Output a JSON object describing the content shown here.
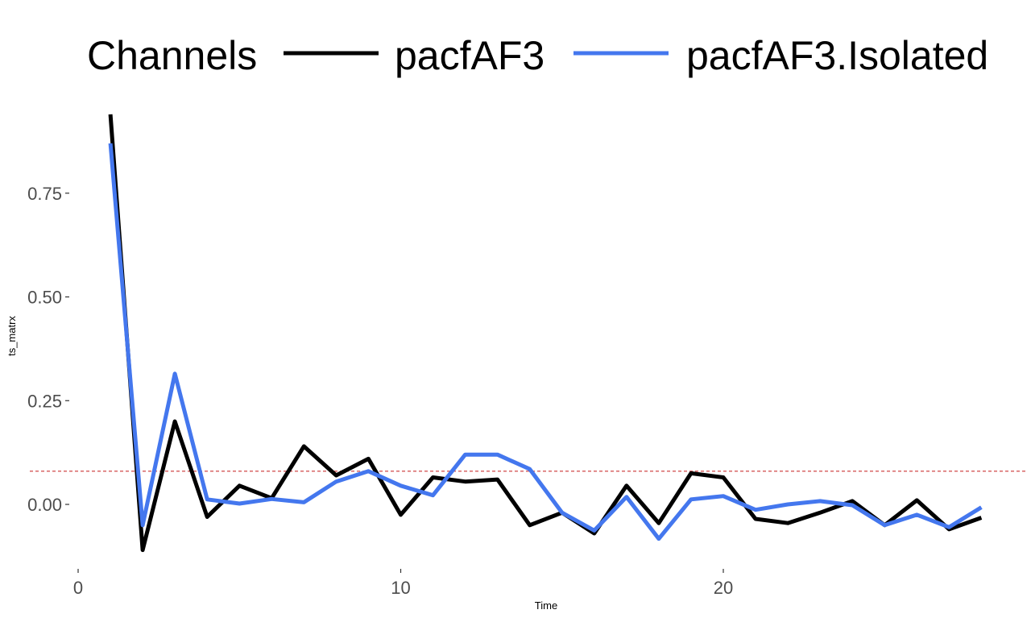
{
  "chart_data": {
    "type": "line",
    "title": "",
    "xlabel": "Time",
    "ylabel": "ts_matrx",
    "xlim": [
      0,
      28
    ],
    "ylim": [
      -0.11,
      0.94
    ],
    "x_ticks": [
      0,
      10,
      20
    ],
    "x_tick_labels": [
      "0",
      "10",
      "20"
    ],
    "y_ticks": [
      0.0,
      0.25,
      0.5,
      0.75
    ],
    "y_tick_labels": [
      "0.00",
      "0.25",
      "0.50",
      "0.75"
    ],
    "grid": false,
    "legend": {
      "title": "Channels",
      "position": "top"
    },
    "x": [
      1,
      2,
      3,
      4,
      5,
      6,
      7,
      8,
      9,
      10,
      11,
      12,
      13,
      14,
      15,
      16,
      17,
      18,
      19,
      20,
      21,
      22,
      23,
      24,
      25,
      26,
      27,
      28
    ],
    "series": [
      {
        "name": "pacfAF3",
        "color": "#000000",
        "values": [
          0.94,
          -0.11,
          0.2,
          -0.03,
          0.045,
          0.015,
          0.14,
          0.07,
          0.11,
          -0.025,
          0.065,
          0.055,
          0.06,
          -0.05,
          -0.02,
          -0.07,
          0.045,
          -0.045,
          0.075,
          0.065,
          -0.035,
          -0.045,
          -0.02,
          0.008,
          -0.05,
          0.01,
          -0.06,
          -0.032
        ]
      },
      {
        "name": "pacfAF3.Isolated",
        "color": "#4477ee",
        "values": [
          0.87,
          -0.05,
          0.315,
          0.012,
          0.002,
          0.013,
          0.005,
          0.055,
          0.08,
          0.045,
          0.022,
          0.12,
          0.12,
          0.085,
          -0.02,
          -0.063,
          0.018,
          -0.083,
          0.012,
          0.02,
          -0.013,
          0.0,
          0.008,
          -0.002,
          -0.05,
          -0.025,
          -0.055,
          -0.007
        ]
      }
    ],
    "hline": {
      "y": 0.08,
      "color": "#cc3333",
      "style": "dashed"
    }
  }
}
